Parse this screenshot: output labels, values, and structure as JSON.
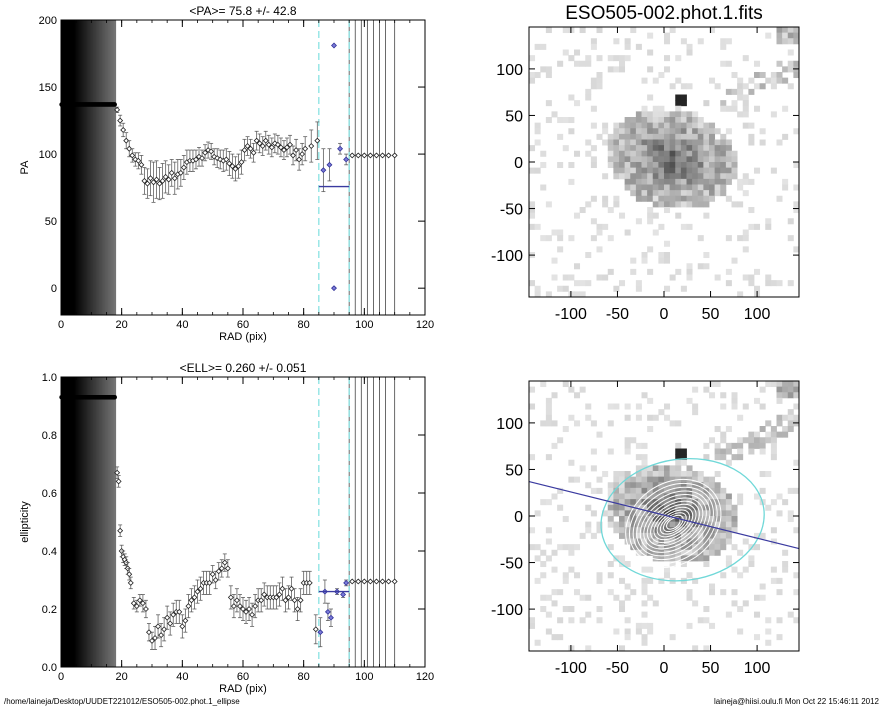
{
  "header": {
    "image_title": "ESO505-002.phot.1.fits"
  },
  "footer": {
    "path": "/home/laineja/Desktop/UUDET221012/ESO505-002.phot.1_ellipse",
    "user_time": "laineja@hiisi.oulu.fi  Mon Oct 22 15:46:11 2012"
  },
  "colors": {
    "frame": "#000000",
    "mean_line": "#3a3aa0",
    "cyan_dash": "#7fe0e0",
    "ellipse_cyan": "#70d8d8",
    "error_bar": "#606060"
  },
  "chart_data": [
    {
      "type": "scatter",
      "panel": "pa-profile",
      "title": "<PA>=  75.8 +/-  42.8",
      "xlabel": "RAD (pix)",
      "ylabel": "PA",
      "xlim": [
        0,
        120
      ],
      "ylim": [
        -20,
        200
      ],
      "xticks": [
        0,
        20,
        40,
        60,
        80,
        100,
        120
      ],
      "yticks": [
        0,
        50,
        100,
        150,
        200
      ],
      "grid": false,
      "shaded_region_x": [
        0,
        18
      ],
      "vertical_dashed_cyan": [
        85,
        95
      ],
      "vertical_lines": [
        95,
        97,
        99,
        101,
        103,
        105,
        107,
        110
      ],
      "mean_segment": {
        "x": [
          85,
          95
        ],
        "y": 75.8
      },
      "flat_segment": {
        "x": [
          0,
          18
        ],
        "y": 137
      },
      "points": [
        {
          "x": 18.5,
          "y": 133,
          "err": 2
        },
        {
          "x": 19.5,
          "y": 125,
          "err": 4
        },
        {
          "x": 20.5,
          "y": 118,
          "err": 5
        },
        {
          "x": 21.5,
          "y": 110,
          "err": 6
        },
        {
          "x": 22.5,
          "y": 104,
          "err": 6
        },
        {
          "x": 23.5,
          "y": 99,
          "err": 5
        },
        {
          "x": 24.5,
          "y": 96,
          "err": 5
        },
        {
          "x": 25.5,
          "y": 95,
          "err": 6
        },
        {
          "x": 26.5,
          "y": 92,
          "err": 7
        },
        {
          "x": 27.5,
          "y": 80,
          "err": 10
        },
        {
          "x": 28.5,
          "y": 78,
          "err": 11
        },
        {
          "x": 29.5,
          "y": 82,
          "err": 13
        },
        {
          "x": 30.5,
          "y": 79,
          "err": 15
        },
        {
          "x": 31.5,
          "y": 81,
          "err": 14
        },
        {
          "x": 32.5,
          "y": 78,
          "err": 12
        },
        {
          "x": 33.5,
          "y": 80,
          "err": 13
        },
        {
          "x": 34.5,
          "y": 83,
          "err": 12
        },
        {
          "x": 35.5,
          "y": 81,
          "err": 11
        },
        {
          "x": 36.5,
          "y": 86,
          "err": 10
        },
        {
          "x": 37.5,
          "y": 82,
          "err": 12
        },
        {
          "x": 38.5,
          "y": 85,
          "err": 11
        },
        {
          "x": 39.5,
          "y": 86,
          "err": 10
        },
        {
          "x": 40.5,
          "y": 90,
          "err": 9
        },
        {
          "x": 41.5,
          "y": 94,
          "err": 9
        },
        {
          "x": 42.5,
          "y": 95,
          "err": 8
        },
        {
          "x": 43.5,
          "y": 95,
          "err": 8
        },
        {
          "x": 44.5,
          "y": 96,
          "err": 7
        },
        {
          "x": 45.5,
          "y": 98,
          "err": 7
        },
        {
          "x": 46.5,
          "y": 97,
          "err": 6
        },
        {
          "x": 47.5,
          "y": 101,
          "err": 6
        },
        {
          "x": 48.5,
          "y": 103,
          "err": 6
        },
        {
          "x": 49.5,
          "y": 102,
          "err": 6
        },
        {
          "x": 50.5,
          "y": 98,
          "err": 6
        },
        {
          "x": 51.5,
          "y": 97,
          "err": 7
        },
        {
          "x": 52.5,
          "y": 96,
          "err": 7
        },
        {
          "x": 53.5,
          "y": 95,
          "err": 8
        },
        {
          "x": 54.5,
          "y": 96,
          "err": 8
        },
        {
          "x": 55.5,
          "y": 93,
          "err": 9
        },
        {
          "x": 56.5,
          "y": 91,
          "err": 9
        },
        {
          "x": 57.5,
          "y": 89,
          "err": 9
        },
        {
          "x": 58.5,
          "y": 91,
          "err": 9
        },
        {
          "x": 59.5,
          "y": 94,
          "err": 9
        },
        {
          "x": 60.5,
          "y": 103,
          "err": 8
        },
        {
          "x": 61.5,
          "y": 106,
          "err": 7
        },
        {
          "x": 62.5,
          "y": 104,
          "err": 7
        },
        {
          "x": 63.5,
          "y": 101,
          "err": 7
        },
        {
          "x": 64.5,
          "y": 110,
          "err": 7
        },
        {
          "x": 65.5,
          "y": 108,
          "err": 7
        },
        {
          "x": 66.5,
          "y": 106,
          "err": 7
        },
        {
          "x": 67.5,
          "y": 110,
          "err": 7
        },
        {
          "x": 68.5,
          "y": 107,
          "err": 7
        },
        {
          "x": 69.5,
          "y": 105,
          "err": 7
        },
        {
          "x": 70.5,
          "y": 108,
          "err": 7
        },
        {
          "x": 71.5,
          "y": 107,
          "err": 7
        },
        {
          "x": 72.5,
          "y": 105,
          "err": 7
        },
        {
          "x": 73.5,
          "y": 103,
          "err": 7
        },
        {
          "x": 74.5,
          "y": 105,
          "err": 7
        },
        {
          "x": 75.5,
          "y": 107,
          "err": 7
        },
        {
          "x": 76.5,
          "y": 99,
          "err": 7
        },
        {
          "x": 77.5,
          "y": 103,
          "err": 8
        },
        {
          "x": 78.5,
          "y": 96,
          "err": 8
        },
        {
          "x": 79.5,
          "y": 100,
          "err": 8
        },
        {
          "x": 80.5,
          "y": 104,
          "err": 9
        },
        {
          "x": 82.5,
          "y": 106,
          "err": 12
        },
        {
          "x": 84.5,
          "y": 110,
          "err": 14
        },
        {
          "x": 86.5,
          "y": 88,
          "err": 16
        },
        {
          "x": 88.5,
          "y": 92,
          "err": 12
        },
        {
          "x": 90.0,
          "y": 181,
          "err": 0
        },
        {
          "x": 90.0,
          "y": 0,
          "err": 0
        },
        {
          "x": 92.0,
          "y": 104,
          "err": 4
        },
        {
          "x": 94.0,
          "y": 96,
          "err": 4
        },
        {
          "x": 96,
          "y": 99,
          "err": 0
        },
        {
          "x": 98,
          "y": 99,
          "err": 0
        },
        {
          "x": 100,
          "y": 99,
          "err": 0
        },
        {
          "x": 102,
          "y": 99,
          "err": 0
        },
        {
          "x": 104,
          "y": 99,
          "err": 0
        },
        {
          "x": 106,
          "y": 99,
          "err": 0
        },
        {
          "x": 108,
          "y": 99,
          "err": 0
        },
        {
          "x": 110,
          "y": 99,
          "err": 0
        }
      ]
    },
    {
      "type": "scatter",
      "panel": "ellipticity-profile",
      "title": "<ELL>= 0.260 +/-  0.051",
      "xlabel": "RAD (pix)",
      "ylabel": "ellipticity",
      "xlim": [
        0,
        120
      ],
      "ylim": [
        0,
        1
      ],
      "xticks": [
        0,
        20,
        40,
        60,
        80,
        100,
        120
      ],
      "yticks": [
        0.0,
        0.2,
        0.4,
        0.6,
        0.8,
        1.0
      ],
      "ytick_labels": [
        "0.0",
        "0.2",
        "0.4",
        "0.6",
        "0.8",
        "1.0"
      ],
      "grid": false,
      "shaded_region_x": [
        0,
        18
      ],
      "vertical_dashed_cyan": [
        85,
        95
      ],
      "vertical_lines": [
        95,
        97,
        99,
        101,
        103,
        105,
        107,
        110
      ],
      "mean_segment": {
        "x": [
          85,
          95
        ],
        "y": 0.26
      },
      "flat_segment": {
        "x": [
          0,
          18
        ],
        "y": 0.93
      },
      "points": [
        {
          "x": 18.5,
          "y": 0.67,
          "err": 0.02
        },
        {
          "x": 19.0,
          "y": 0.64,
          "err": 0.02
        },
        {
          "x": 19.5,
          "y": 0.47,
          "err": 0.02
        },
        {
          "x": 20.0,
          "y": 0.4,
          "err": 0.02
        },
        {
          "x": 20.5,
          "y": 0.38,
          "err": 0.02
        },
        {
          "x": 21.0,
          "y": 0.37,
          "err": 0.02
        },
        {
          "x": 21.5,
          "y": 0.36,
          "err": 0.02
        },
        {
          "x": 22.0,
          "y": 0.34,
          "err": 0.02
        },
        {
          "x": 22.5,
          "y": 0.32,
          "err": 0.02
        },
        {
          "x": 23.0,
          "y": 0.29,
          "err": 0.02
        },
        {
          "x": 24.0,
          "y": 0.22,
          "err": 0.02
        },
        {
          "x": 25.0,
          "y": 0.21,
          "err": 0.02
        },
        {
          "x": 26.0,
          "y": 0.23,
          "err": 0.02
        },
        {
          "x": 27.0,
          "y": 0.22,
          "err": 0.03
        },
        {
          "x": 28.0,
          "y": 0.2,
          "err": 0.03
        },
        {
          "x": 29.0,
          "y": 0.12,
          "err": 0.03
        },
        {
          "x": 30.0,
          "y": 0.09,
          "err": 0.03
        },
        {
          "x": 31.0,
          "y": 0.1,
          "err": 0.04
        },
        {
          "x": 32.0,
          "y": 0.14,
          "err": 0.04
        },
        {
          "x": 33.0,
          "y": 0.11,
          "err": 0.04
        },
        {
          "x": 34.0,
          "y": 0.13,
          "err": 0.04
        },
        {
          "x": 35.0,
          "y": 0.17,
          "err": 0.04
        },
        {
          "x": 36.0,
          "y": 0.15,
          "err": 0.04
        },
        {
          "x": 37.0,
          "y": 0.18,
          "err": 0.04
        },
        {
          "x": 38.0,
          "y": 0.19,
          "err": 0.04
        },
        {
          "x": 39.0,
          "y": 0.19,
          "err": 0.04
        },
        {
          "x": 40.0,
          "y": 0.14,
          "err": 0.04
        },
        {
          "x": 41.0,
          "y": 0.16,
          "err": 0.04
        },
        {
          "x": 42.0,
          "y": 0.21,
          "err": 0.04
        },
        {
          "x": 43.0,
          "y": 0.23,
          "err": 0.04
        },
        {
          "x": 44.0,
          "y": 0.24,
          "err": 0.04
        },
        {
          "x": 45.0,
          "y": 0.26,
          "err": 0.04
        },
        {
          "x": 46.0,
          "y": 0.27,
          "err": 0.04
        },
        {
          "x": 47.0,
          "y": 0.29,
          "err": 0.04
        },
        {
          "x": 48.0,
          "y": 0.29,
          "err": 0.04
        },
        {
          "x": 49.0,
          "y": 0.29,
          "err": 0.04
        },
        {
          "x": 50.0,
          "y": 0.32,
          "err": 0.03
        },
        {
          "x": 51.0,
          "y": 0.3,
          "err": 0.03
        },
        {
          "x": 52.0,
          "y": 0.33,
          "err": 0.03
        },
        {
          "x": 53.0,
          "y": 0.34,
          "err": 0.03
        },
        {
          "x": 54.0,
          "y": 0.36,
          "err": 0.03
        },
        {
          "x": 55.0,
          "y": 0.34,
          "err": 0.03
        },
        {
          "x": 56.0,
          "y": 0.24,
          "err": 0.04
        },
        {
          "x": 57.0,
          "y": 0.21,
          "err": 0.04
        },
        {
          "x": 58.0,
          "y": 0.23,
          "err": 0.04
        },
        {
          "x": 59.0,
          "y": 0.21,
          "err": 0.04
        },
        {
          "x": 60.0,
          "y": 0.2,
          "err": 0.04
        },
        {
          "x": 61.0,
          "y": 0.19,
          "err": 0.04
        },
        {
          "x": 62.0,
          "y": 0.2,
          "err": 0.04
        },
        {
          "x": 63.0,
          "y": 0.18,
          "err": 0.04
        },
        {
          "x": 64.0,
          "y": 0.21,
          "err": 0.04
        },
        {
          "x": 65.0,
          "y": 0.23,
          "err": 0.04
        },
        {
          "x": 66.0,
          "y": 0.23,
          "err": 0.04
        },
        {
          "x": 67.0,
          "y": 0.25,
          "err": 0.04
        },
        {
          "x": 68.0,
          "y": 0.24,
          "err": 0.04
        },
        {
          "x": 69.0,
          "y": 0.24,
          "err": 0.04
        },
        {
          "x": 70.0,
          "y": 0.24,
          "err": 0.04
        },
        {
          "x": 71.0,
          "y": 0.24,
          "err": 0.04
        },
        {
          "x": 72.0,
          "y": 0.25,
          "err": 0.04
        },
        {
          "x": 73.0,
          "y": 0.27,
          "err": 0.04
        },
        {
          "x": 74.0,
          "y": 0.23,
          "err": 0.04
        },
        {
          "x": 75.0,
          "y": 0.24,
          "err": 0.04
        },
        {
          "x": 76.0,
          "y": 0.27,
          "err": 0.04
        },
        {
          "x": 77.0,
          "y": 0.23,
          "err": 0.04
        },
        {
          "x": 78.0,
          "y": 0.2,
          "err": 0.04
        },
        {
          "x": 79.0,
          "y": 0.23,
          "err": 0.04
        },
        {
          "x": 80.0,
          "y": 0.29,
          "err": 0.04
        },
        {
          "x": 81.0,
          "y": 0.29,
          "err": 0.04
        },
        {
          "x": 82.0,
          "y": 0.29,
          "err": 0.04
        },
        {
          "x": 84.0,
          "y": 0.13,
          "err": 0.05
        },
        {
          "x": 85.5,
          "y": 0.12,
          "err": 0.05
        },
        {
          "x": 87.0,
          "y": 0.26,
          "err": 0.04
        },
        {
          "x": 88.0,
          "y": 0.19,
          "err": 0.03
        },
        {
          "x": 89.0,
          "y": 0.17,
          "err": 0.03
        },
        {
          "x": 91.0,
          "y": 0.26,
          "err": 0.01
        },
        {
          "x": 93.0,
          "y": 0.25,
          "err": 0.01
        },
        {
          "x": 94.0,
          "y": 0.29,
          "err": 0.01
        },
        {
          "x": 96,
          "y": 0.295,
          "err": 0
        },
        {
          "x": 98,
          "y": 0.295,
          "err": 0
        },
        {
          "x": 100,
          "y": 0.295,
          "err": 0
        },
        {
          "x": 102,
          "y": 0.295,
          "err": 0
        },
        {
          "x": 104,
          "y": 0.295,
          "err": 0
        },
        {
          "x": 106,
          "y": 0.295,
          "err": 0
        },
        {
          "x": 108,
          "y": 0.295,
          "err": 0
        },
        {
          "x": 110,
          "y": 0.295,
          "err": 0
        }
      ]
    },
    {
      "type": "heatmap",
      "panel": "galaxy-image",
      "title": "ESO505-002.phot.1.fits",
      "xlim": [
        -145,
        145
      ],
      "ylim": [
        -145,
        145
      ],
      "xticks": [
        -100,
        -50,
        0,
        50,
        100
      ],
      "yticks": [
        -100,
        -50,
        0,
        50,
        100
      ],
      "colormap": "inverted grayscale"
    },
    {
      "type": "heatmap",
      "panel": "galaxy-image-with-isophotes",
      "title": "",
      "xlim": [
        -145,
        145
      ],
      "ylim": [
        -145,
        145
      ],
      "xticks": [
        -100,
        -50,
        0,
        50,
        100
      ],
      "yticks": [
        -100,
        -50,
        0,
        50,
        100
      ],
      "colormap": "inverted grayscale",
      "overlay_ellipse": {
        "center": [
          0,
          0
        ],
        "semi_major": 88,
        "ellipticity": 0.26,
        "pa_deg": 75.8
      },
      "overlay_line": {
        "from": [
          -145,
          37
        ],
        "to": [
          145,
          -35
        ]
      }
    }
  ]
}
